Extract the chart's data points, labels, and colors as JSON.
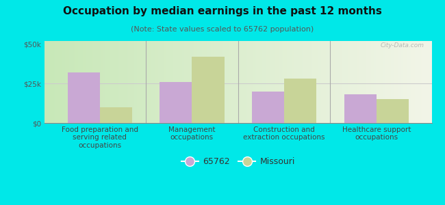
{
  "title": "Occupation by median earnings in the past 12 months",
  "subtitle": "(Note: State values scaled to 65762 population)",
  "categories": [
    "Food preparation and\nserving related\noccupations",
    "Management\noccupations",
    "Construction and\nextraction occupations",
    "Healthcare support\noccupations"
  ],
  "values_65762": [
    32000,
    26000,
    20000,
    18000
  ],
  "values_missouri": [
    10000,
    42000,
    28000,
    15000
  ],
  "bar_color_65762": "#c9a8d4",
  "bar_color_missouri": "#c8d498",
  "background_outer": "#00e8e8",
  "background_inner_left": "#c8e8c0",
  "background_inner_right": "#f5f5f0",
  "ylabel_ticks": [
    "$0",
    "$25k",
    "$50k"
  ],
  "ytick_values": [
    0,
    25000,
    50000
  ],
  "ylim": [
    0,
    52000
  ],
  "legend_labels": [
    "65762",
    "Missouri"
  ],
  "bar_width": 0.35,
  "title_fontsize": 11,
  "subtitle_fontsize": 8,
  "tick_fontsize": 7.5,
  "legend_fontsize": 9
}
